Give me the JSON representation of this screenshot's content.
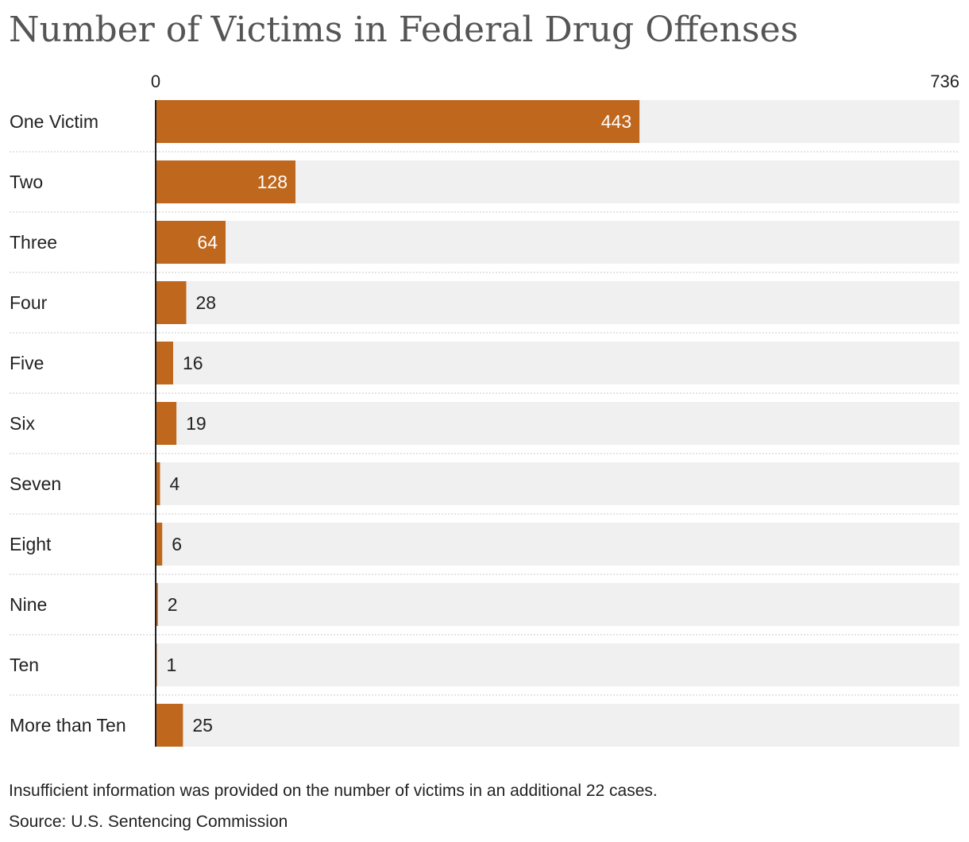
{
  "colors": {
    "bar": "#bf671c",
    "track": "#f0f0f0",
    "divider": "#c8c8c8",
    "axis": "#222222",
    "label_inside": "#ffffff",
    "label_outside": "#222222",
    "title": "#555555"
  },
  "chart_data": {
    "type": "bar",
    "orientation": "horizontal",
    "title": "Number of Victims in Federal Drug Offenses",
    "categories": [
      "One Victim",
      "Two",
      "Three",
      "Four",
      "Five",
      "Six",
      "Seven",
      "Eight",
      "Nine",
      "Ten",
      "More than Ten"
    ],
    "values": [
      443,
      128,
      64,
      28,
      16,
      19,
      4,
      6,
      2,
      1,
      25
    ],
    "xlim": [
      0,
      736
    ],
    "axis_labels": {
      "min": "0",
      "max": "736"
    },
    "xlabel": "",
    "ylabel": "",
    "grid": false,
    "legend": "none"
  },
  "footer": {
    "note": "Insufficient information was provided on the number of victims in an additional 22 cases.",
    "source": "Source: U.S. Sentencing Commission"
  }
}
